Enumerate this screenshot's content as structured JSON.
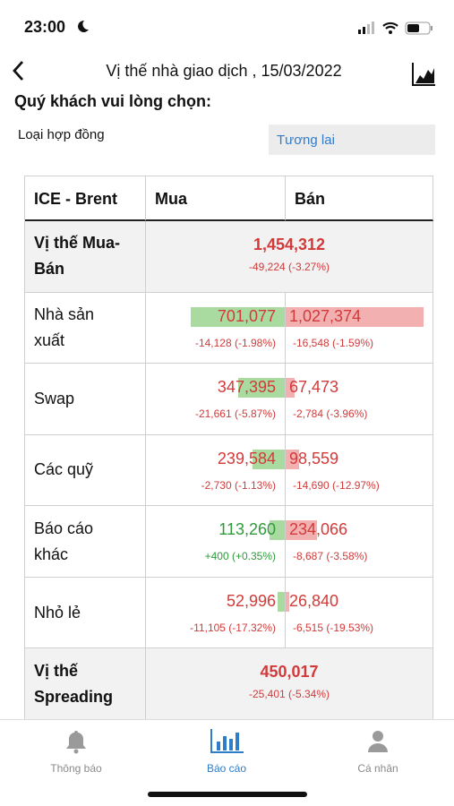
{
  "status_bar": {
    "time": "23:00"
  },
  "header": {
    "title": "Vị thế nhà giao dịch , 15/03/2022"
  },
  "prompt": "Quý khách vui lòng chọn:",
  "filter": {
    "label": "Loại hợp đồng",
    "value": "Tương lai"
  },
  "colors": {
    "up": "#2f9a3a",
    "down": "#d23a3a",
    "buy_bar": "#a9dba0",
    "sell_bar": "#f3b0b0"
  },
  "table": {
    "columns": [
      "ICE - Brent",
      "Mua",
      "Bán"
    ],
    "rows": [
      {
        "name": "Vị thế Mua-Bán",
        "net": "1,454,312",
        "net_change": {
          "value": -49224,
          "label": "-49,224 (-3.27%)"
        }
      },
      {
        "name": "Nhà sản xuất",
        "buy": {
          "value": 701077,
          "label": "701,077"
        },
        "buy_change": {
          "value": -14128,
          "label": "-14,128 (-1.98%)"
        },
        "sell": {
          "value": 1027374,
          "label": "1,027,374"
        },
        "sell_change": {
          "value": -16548,
          "label": "-16,548 (-1.59%)"
        }
      },
      {
        "name": "Swap",
        "buy": {
          "value": 347395,
          "label": "347,395"
        },
        "buy_change": {
          "value": -21661,
          "label": "-21,661 (-5.87%)"
        },
        "sell": {
          "value": 67473,
          "label": "67,473"
        },
        "sell_change": {
          "value": -2784,
          "label": "-2,784 (-3.96%)"
        }
      },
      {
        "name": "Các quỹ",
        "buy": {
          "value": 239584,
          "label": "239,584"
        },
        "buy_change": {
          "value": -2730,
          "label": "-2,730 (-1.13%)"
        },
        "sell": {
          "value": 98559,
          "label": "98,559"
        },
        "sell_change": {
          "value": -14690,
          "label": "-14,690 (-12.97%)"
        }
      },
      {
        "name": "Báo cáo khác",
        "buy": {
          "value": 113260,
          "label": "113,260"
        },
        "buy_change": {
          "value": 400,
          "label": "+400 (+0.35%)"
        },
        "sell": {
          "value": 234066,
          "label": "234,066"
        },
        "sell_change": {
          "value": -8687,
          "label": "-8,687 (-3.58%)"
        }
      },
      {
        "name": "Nhỏ lẻ",
        "buy": {
          "value": 52996,
          "label": "52,996"
        },
        "buy_change": {
          "value": -11105,
          "label": "-11,105 (-17.32%)"
        },
        "sell": {
          "value": 26840,
          "label": "26,840"
        },
        "sell_change": {
          "value": -6515,
          "label": "-6,515 (-19.53%)"
        }
      },
      {
        "name": "Vị thế Spreading",
        "net": "450,017",
        "net_change": {
          "value": -25401,
          "label": "-25,401 (-5.34%)"
        }
      }
    ]
  },
  "tabs": [
    {
      "label": "Thông báo"
    },
    {
      "label": "Báo cáo",
      "active": true
    },
    {
      "label": "Cá nhân"
    }
  ]
}
